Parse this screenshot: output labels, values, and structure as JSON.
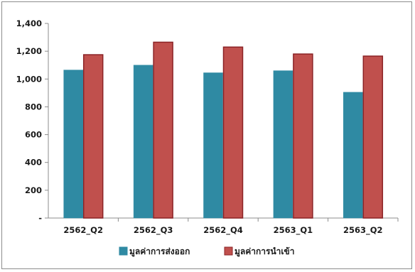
{
  "chart_data": {
    "type": "bar",
    "categories": [
      "2562_Q2",
      "2562_Q3",
      "2562_Q4",
      "2563_Q1",
      "2563_Q2"
    ],
    "series": [
      {
        "name": "มูลค่าการส่งออก",
        "values": [
          1065,
          1100,
          1045,
          1060,
          905
        ],
        "color": "#2f8aa3",
        "edge": "#2f8aa3"
      },
      {
        "name": "มูลค่าการนำเข้า",
        "values": [
          1175,
          1265,
          1230,
          1180,
          1165
        ],
        "color": "#c0504d",
        "edge": "#8b2326"
      }
    ],
    "title": "",
    "xlabel": "",
    "ylabel": "",
    "ylim": [
      0,
      1400
    ],
    "yticks": [
      0,
      200,
      400,
      600,
      800,
      1000,
      1200,
      1400
    ],
    "ytick_labels": [
      "-",
      "200",
      "400",
      "600",
      "800",
      "1,000",
      "1,200",
      "1,400"
    ],
    "grid": false,
    "legend": "bottom"
  }
}
